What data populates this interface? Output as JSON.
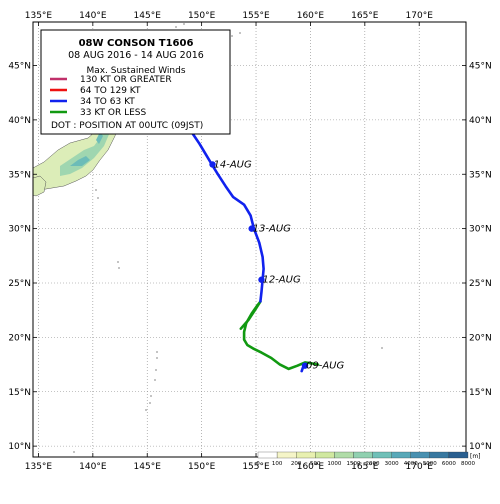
{
  "map": {
    "lon_range": [
      134.5,
      174.3
    ],
    "lat_range": [
      9.0,
      49.0
    ],
    "lon_ticks": [
      135,
      140,
      145,
      150,
      155,
      160,
      165,
      170
    ],
    "lat_ticks": [
      10,
      15,
      20,
      25,
      30,
      35,
      40,
      45
    ],
    "lon_tick_labels": [
      "135°E",
      "140°E",
      "145°E",
      "150°E",
      "155°E",
      "160°E",
      "165°E",
      "170°E"
    ],
    "lat_tick_labels": [
      "10°N",
      "15°N",
      "20°N",
      "25°N",
      "30°N",
      "35°N",
      "40°N",
      "45°N"
    ],
    "grid": "dotted",
    "projection": "equirectangular"
  },
  "legend": {
    "title": "08W  CONSON  T1606",
    "period": "08 AUG 2016 - 14 AUG 2016",
    "heading": "Max. Sustained Winds",
    "entries": [
      {
        "label": "130 KT OR GREATER",
        "color": "#c0306a"
      },
      {
        "label": "64 TO 129 KT",
        "color": "#ee1111"
      },
      {
        "label": "34 TO 63 KT",
        "color": "#1122ee"
      },
      {
        "label": "33 KT OR LESS",
        "color": "#119911"
      }
    ],
    "dot_note": "DOT : POSITION AT 00UTC (09JST)",
    "placement": "top-left"
  },
  "track": {
    "segments": [
      {
        "category": "33 KT OR LESS",
        "color": "#119911",
        "points": [
          [
            160.7,
            17.5
          ],
          [
            160.2,
            17.6
          ],
          [
            159.5,
            17.7
          ],
          [
            158.8,
            17.4
          ],
          [
            158.0,
            17.1
          ],
          [
            157.2,
            17.5
          ],
          [
            156.4,
            18.1
          ],
          [
            155.5,
            18.6
          ],
          [
            154.7,
            19.0
          ],
          [
            154.2,
            19.3
          ],
          [
            153.9,
            19.8
          ],
          [
            153.9,
            20.5
          ],
          [
            154.1,
            21.3
          ],
          [
            154.6,
            22.2
          ],
          [
            155.1,
            22.9
          ],
          [
            155.4,
            23.3
          ],
          [
            154.9,
            22.5
          ],
          [
            154.3,
            21.6
          ],
          [
            153.6,
            20.8
          ]
        ]
      },
      {
        "category": "34 TO 63 KT",
        "color": "#1122ee",
        "points": [
          [
            155.4,
            23.3
          ],
          [
            155.5,
            24.2
          ],
          [
            155.6,
            25.3
          ],
          [
            155.7,
            26.3
          ],
          [
            155.6,
            27.4
          ],
          [
            155.3,
            28.7
          ],
          [
            154.8,
            30.0
          ],
          [
            154.5,
            31.2
          ],
          [
            153.9,
            32.2
          ],
          [
            152.9,
            32.9
          ],
          [
            152.2,
            33.9
          ],
          [
            151.5,
            35.0
          ],
          [
            151.0,
            35.8
          ],
          [
            150.4,
            36.8
          ],
          [
            149.8,
            37.8
          ],
          [
            149.2,
            38.7
          ],
          [
            148.6,
            39.7
          ],
          [
            148.1,
            40.5
          ]
        ]
      },
      {
        "category": "34 TO 63 KT",
        "color": "#1122ee",
        "points": [
          [
            159.5,
            17.5
          ],
          [
            159.3,
            17.2
          ],
          [
            159.2,
            16.9
          ]
        ]
      }
    ],
    "daily_positions": [
      {
        "label": "09-AUG",
        "lon": 159.5,
        "lat": 17.4
      },
      {
        "label": "12-AUG",
        "lon": 155.5,
        "lat": 25.3
      },
      {
        "label": "13-AUG",
        "lon": 154.6,
        "lat": 30.0
      },
      {
        "label": "14-AUG",
        "lon": 151.0,
        "lat": 35.9
      }
    ],
    "dot_color": "#1122ee"
  },
  "elevation_scale": {
    "unit": "[m]",
    "values": [
      "0",
      "100",
      "200",
      "500",
      "1000",
      "1500",
      "2000",
      "3000",
      "4000",
      "5000",
      "6000",
      "8000"
    ],
    "colors": [
      "#ffffff",
      "#f5f5c8",
      "#e8f0b0",
      "#d0e8a0",
      "#b0dca8",
      "#90d0b0",
      "#70c0b8",
      "#58a8b8",
      "#4890b0",
      "#3878a0",
      "#2a5f90"
    ]
  }
}
